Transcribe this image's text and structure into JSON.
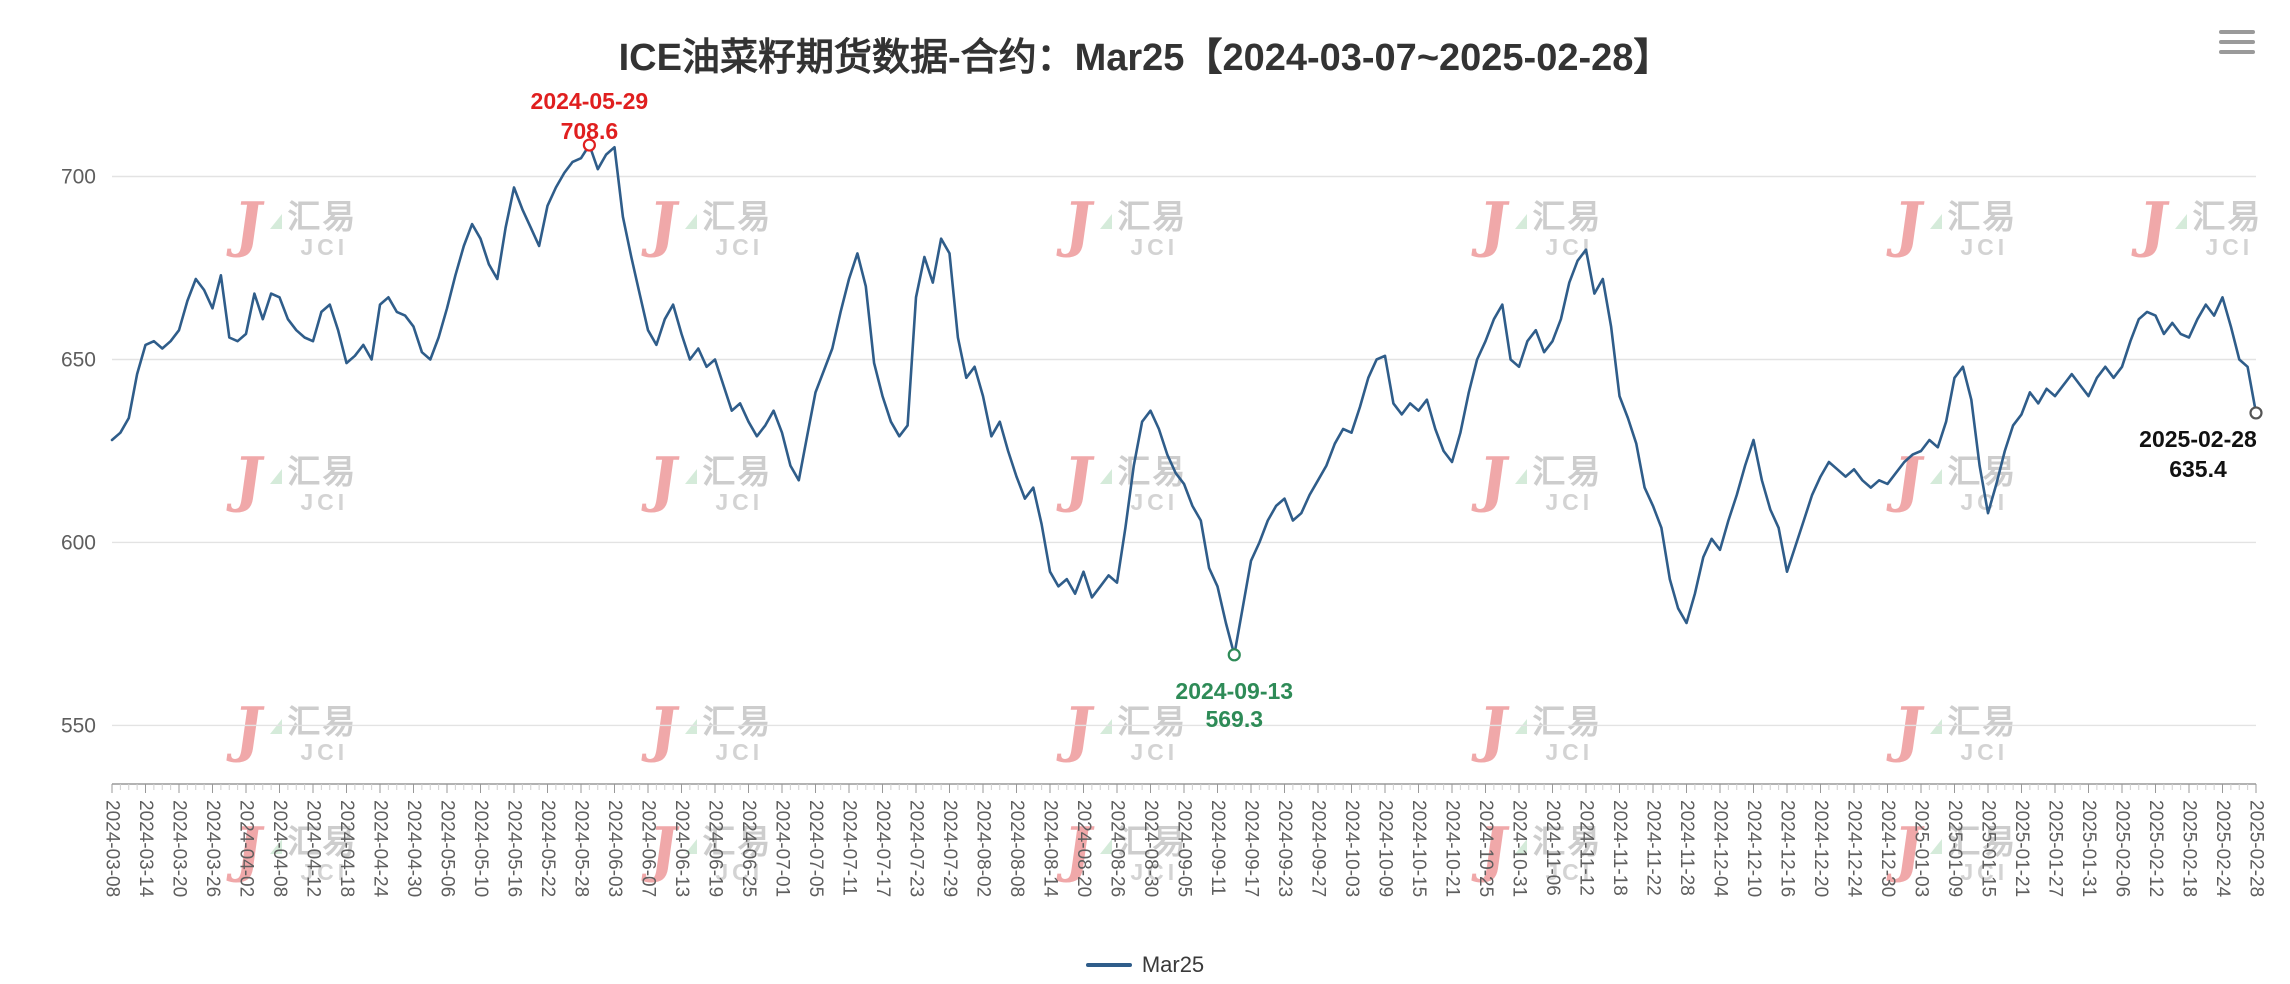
{
  "header": {
    "title": "ICE油菜籽期货数据-合约：Mar25【2024-03-07~2025-02-28】"
  },
  "toolbox": {
    "icon": "hamburger-menu-icon"
  },
  "watermark": {
    "brand_cn": "汇易",
    "brand_en": "JCI",
    "red": "#e04a4e",
    "green": "#a9d7b4",
    "gray": "#989898"
  },
  "legend": {
    "items": [
      {
        "label": "Mar25",
        "color": "#2f5d8a"
      }
    ]
  },
  "chart_data": {
    "type": "line",
    "title": "ICE油菜籽期货数据-合约：Mar25【2024-03-07~2025-02-28】",
    "contract": "Mar25",
    "date_range": "2024-03-07~2025-02-28",
    "legend_position": "bottom-center",
    "grid": true,
    "ylim": [
      534,
      722
    ],
    "yticks": [
      550,
      600,
      650,
      700
    ],
    "line_color": "#2f5d8a",
    "axis_colors": {
      "label": "#5e5e5e",
      "axis_line": "#999999",
      "grid_line": "#e3e3e3",
      "minor_tick": "#cfcfcf"
    },
    "x_tick_every": 4,
    "x_tick_labels": [
      "2024-03-08",
      "2024-03-14",
      "2024-03-20",
      "2024-03-26",
      "2024-04-02",
      "2024-04-08",
      "2024-04-12",
      "2024-04-18",
      "2024-04-24",
      "2024-04-30",
      "2024-05-06",
      "2024-05-10",
      "2024-05-16",
      "2024-05-22",
      "2024-05-28",
      "2024-06-03",
      "2024-06-07",
      "2024-06-13",
      "2024-06-19",
      "2024-06-25",
      "2024-07-01",
      "2024-07-05",
      "2024-07-11",
      "2024-07-17",
      "2024-07-23",
      "2024-07-29",
      "2024-08-02",
      "2024-08-08",
      "2024-08-14",
      "2024-08-20",
      "2024-08-26",
      "2024-08-30",
      "2024-09-05",
      "2024-09-11",
      "2024-09-17",
      "2024-09-23",
      "2024-09-27",
      "2024-10-03",
      "2024-10-09",
      "2024-10-15",
      "2024-10-21",
      "2024-10-25",
      "2024-10-31",
      "2024-11-06",
      "2024-11-12",
      "2024-11-18",
      "2024-11-22",
      "2024-11-28",
      "2024-12-04",
      "2024-12-10",
      "2024-12-16",
      "2024-12-20",
      "2024-12-24",
      "2024-12-30",
      "2025-01-03",
      "2025-01-09",
      "2025-01-15",
      "2025-01-21",
      "2025-01-27",
      "2025-01-31",
      "2025-02-06",
      "2025-02-12",
      "2025-02-18",
      "2025-02-24",
      "2025-02-28"
    ],
    "series": [
      {
        "name": "Mar25",
        "values": [
          628,
          630,
          634,
          646,
          654,
          655,
          653,
          655,
          658,
          666,
          672,
          669,
          664,
          673,
          656,
          655,
          657,
          668,
          661,
          668,
          667,
          661,
          658,
          656,
          655,
          663,
          665,
          658,
          649,
          651,
          654,
          650,
          665,
          667,
          663,
          662,
          659,
          652,
          650,
          656,
          664,
          673,
          681,
          687,
          683,
          676,
          672,
          686,
          697,
          691,
          686,
          681,
          692,
          697,
          701,
          704,
          705,
          708.6,
          702,
          706,
          708,
          689,
          678,
          668,
          658,
          654,
          661,
          665,
          657,
          650,
          653,
          648,
          650,
          643,
          636,
          638,
          633,
          629,
          632,
          636,
          630,
          621,
          617,
          629,
          641,
          647,
          653,
          663,
          672,
          679,
          670,
          649,
          640,
          633,
          629,
          632,
          667,
          678,
          671,
          683,
          679,
          656,
          645,
          648,
          640,
          629,
          633,
          625,
          618,
          612,
          615,
          605,
          592,
          588,
          590,
          586,
          592,
          585,
          588,
          591,
          589,
          604,
          621,
          633,
          636,
          631,
          624,
          619,
          616,
          610,
          606,
          593,
          588,
          578,
          569.3,
          582,
          595,
          600,
          606,
          610,
          612,
          606,
          608,
          613,
          617,
          621,
          627,
          631,
          630,
          637,
          645,
          650,
          651,
          638,
          635,
          638,
          636,
          639,
          631,
          625,
          622,
          630,
          641,
          650,
          655,
          661,
          665,
          650,
          648,
          655,
          658,
          652,
          655,
          661,
          671,
          677,
          680,
          668,
          672,
          659,
          640,
          634,
          627,
          615,
          610,
          604,
          590,
          582,
          578,
          586,
          596,
          601,
          598,
          606,
          613,
          621,
          628,
          617,
          609,
          604,
          592,
          599,
          606,
          613,
          618,
          622,
          620,
          618,
          620,
          617,
          615,
          617,
          616,
          619,
          622,
          624,
          625,
          628,
          626,
          633,
          645,
          648,
          639,
          621,
          608,
          616,
          625,
          632,
          635,
          641,
          638,
          642,
          640,
          643,
          646,
          643,
          640,
          645,
          648,
          645,
          648,
          655,
          661,
          663,
          662,
          657,
          660,
          657,
          656,
          661,
          665,
          662,
          667,
          659,
          650,
          648,
          635.4
        ]
      }
    ],
    "annotations": {
      "max": {
        "label_date": "2024-05-29",
        "value": 708.6,
        "index": 57,
        "color": "#e01f1f"
      },
      "min": {
        "label_date": "2024-09-13",
        "value": 569.3,
        "index": 134,
        "color": "#2e8b57"
      },
      "last": {
        "label_date": "2025-02-28",
        "value": 635.4,
        "index": 256,
        "color": "#111111"
      }
    }
  }
}
